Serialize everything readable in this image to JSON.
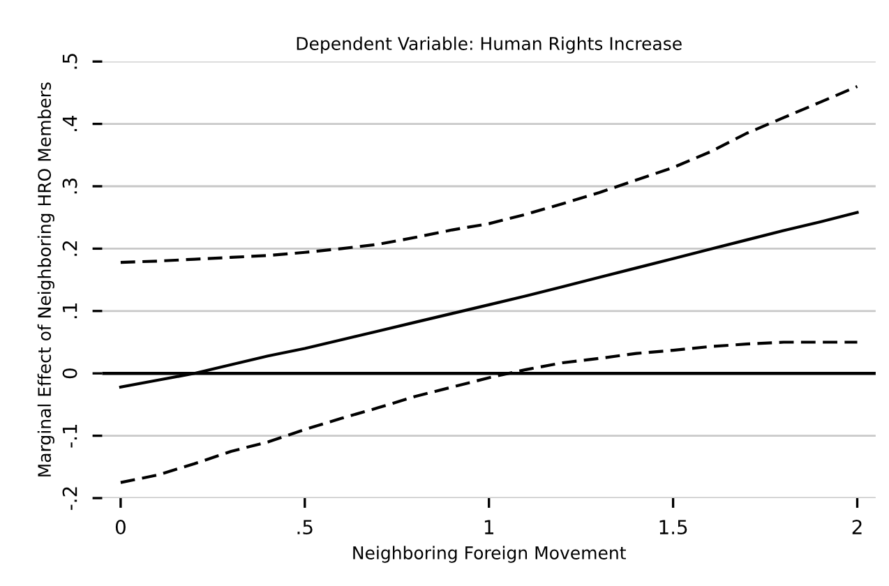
{
  "chart_data": {
    "type": "line",
    "title": "Dependent Variable: Human Rights Increase",
    "xlabel": "Neighboring Foreign Movement",
    "ylabel": "Marginal Effect of Neighboring HRO Members",
    "x": [
      0,
      0.1,
      0.2,
      0.3,
      0.4,
      0.5,
      0.6,
      0.7,
      0.8,
      0.9,
      1,
      1.1,
      1.2,
      1.3,
      1.4,
      1.5,
      1.6,
      1.7,
      1.8,
      1.9,
      2
    ],
    "series": [
      {
        "color": "#000000",
        "line_style": "solid",
        "values": [
          -0.022,
          -0.011,
          0.0,
          0.014,
          0.028,
          0.04,
          0.054,
          0.068,
          0.082,
          0.096,
          0.11,
          0.124,
          0.139,
          0.154,
          0.169,
          0.184,
          0.199,
          0.214,
          0.229,
          0.243,
          0.258
        ]
      },
      {
        "color": "#000000",
        "line_style": "dashed",
        "values": [
          0.178,
          0.18,
          0.183,
          0.186,
          0.189,
          0.194,
          0.2,
          0.207,
          0.218,
          0.23,
          0.24,
          0.255,
          0.272,
          0.29,
          0.31,
          0.33,
          0.355,
          0.385,
          0.41,
          0.435,
          0.46
        ]
      },
      {
        "color": "#000000",
        "line_style": "dashed",
        "values": [
          -0.175,
          -0.163,
          -0.145,
          -0.125,
          -0.11,
          -0.09,
          -0.072,
          -0.055,
          -0.037,
          -0.022,
          -0.007,
          0.006,
          0.017,
          0.024,
          0.032,
          0.037,
          0.043,
          0.047,
          0.05,
          0.05,
          0.05
        ]
      }
    ],
    "xlim": [
      -0.05,
      2.05
    ],
    "ylim": [
      -0.2,
      0.5
    ],
    "xticks": [
      0,
      {
        "value": 0.5,
        "label": ".5"
      },
      1,
      1.5,
      2
    ],
    "yticks": [
      {
        "value": -0.2,
        "label": "-.2"
      },
      {
        "value": -0.1,
        "label": "-.1"
      },
      0,
      {
        "value": 0.1,
        "label": ".1"
      },
      {
        "value": 0.2,
        "label": ".2"
      },
      {
        "value": 0.3,
        "label": ".3"
      },
      {
        "value": 0.4,
        "label": ".4"
      },
      {
        "value": 0.5,
        "label": ".5"
      }
    ],
    "grid": "y",
    "legend": false,
    "ref_lines": [
      {
        "axis": "y",
        "value": 0,
        "color": "#000000"
      }
    ]
  }
}
